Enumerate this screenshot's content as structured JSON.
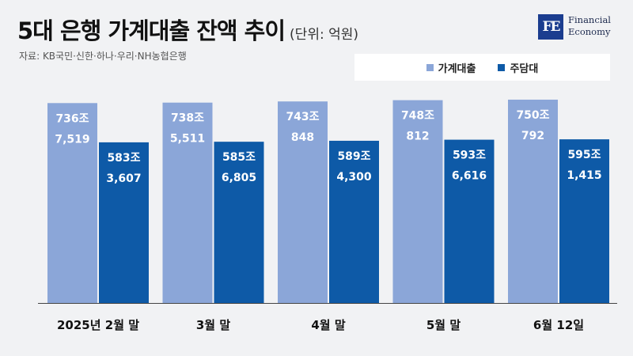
{
  "header": {
    "title": "5대 은행 가계대출 잔액 추이",
    "unit": "(단위: 억원)",
    "source": "자료: KB국민·신한·하나·우리·NH농협은행"
  },
  "logo": {
    "mark": "FE",
    "line1": "Financial",
    "line2": "Economy"
  },
  "colors": {
    "household": "#8ba6d8",
    "mortgage": "#0e5aa7",
    "axis": "#444444"
  },
  "chart_data": {
    "type": "bar",
    "categories": [
      "2025년 2월 말",
      "3월 말",
      "4월 말",
      "5월 말",
      "6월 12일"
    ],
    "series": [
      {
        "name": "가계대출",
        "label_top": [
          "736조",
          "738조",
          "743조",
          "748조",
          "750조"
        ],
        "label_bottom": [
          "7,519",
          "5,511",
          "848",
          "812",
          "792"
        ],
        "values": [
          7367519,
          7385511,
          7430848,
          7480812,
          7500792
        ]
      },
      {
        "name": "주담대",
        "label_top": [
          "583조",
          "585조",
          "589조",
          "593조",
          "595조"
        ],
        "label_bottom": [
          "3,607",
          "6,805",
          "4,300",
          "6,616",
          "1,415"
        ],
        "values": [
          5833607,
          5856805,
          5894300,
          5936616,
          5951415
        ]
      }
    ],
    "legend": "top-right",
    "grid": false
  }
}
